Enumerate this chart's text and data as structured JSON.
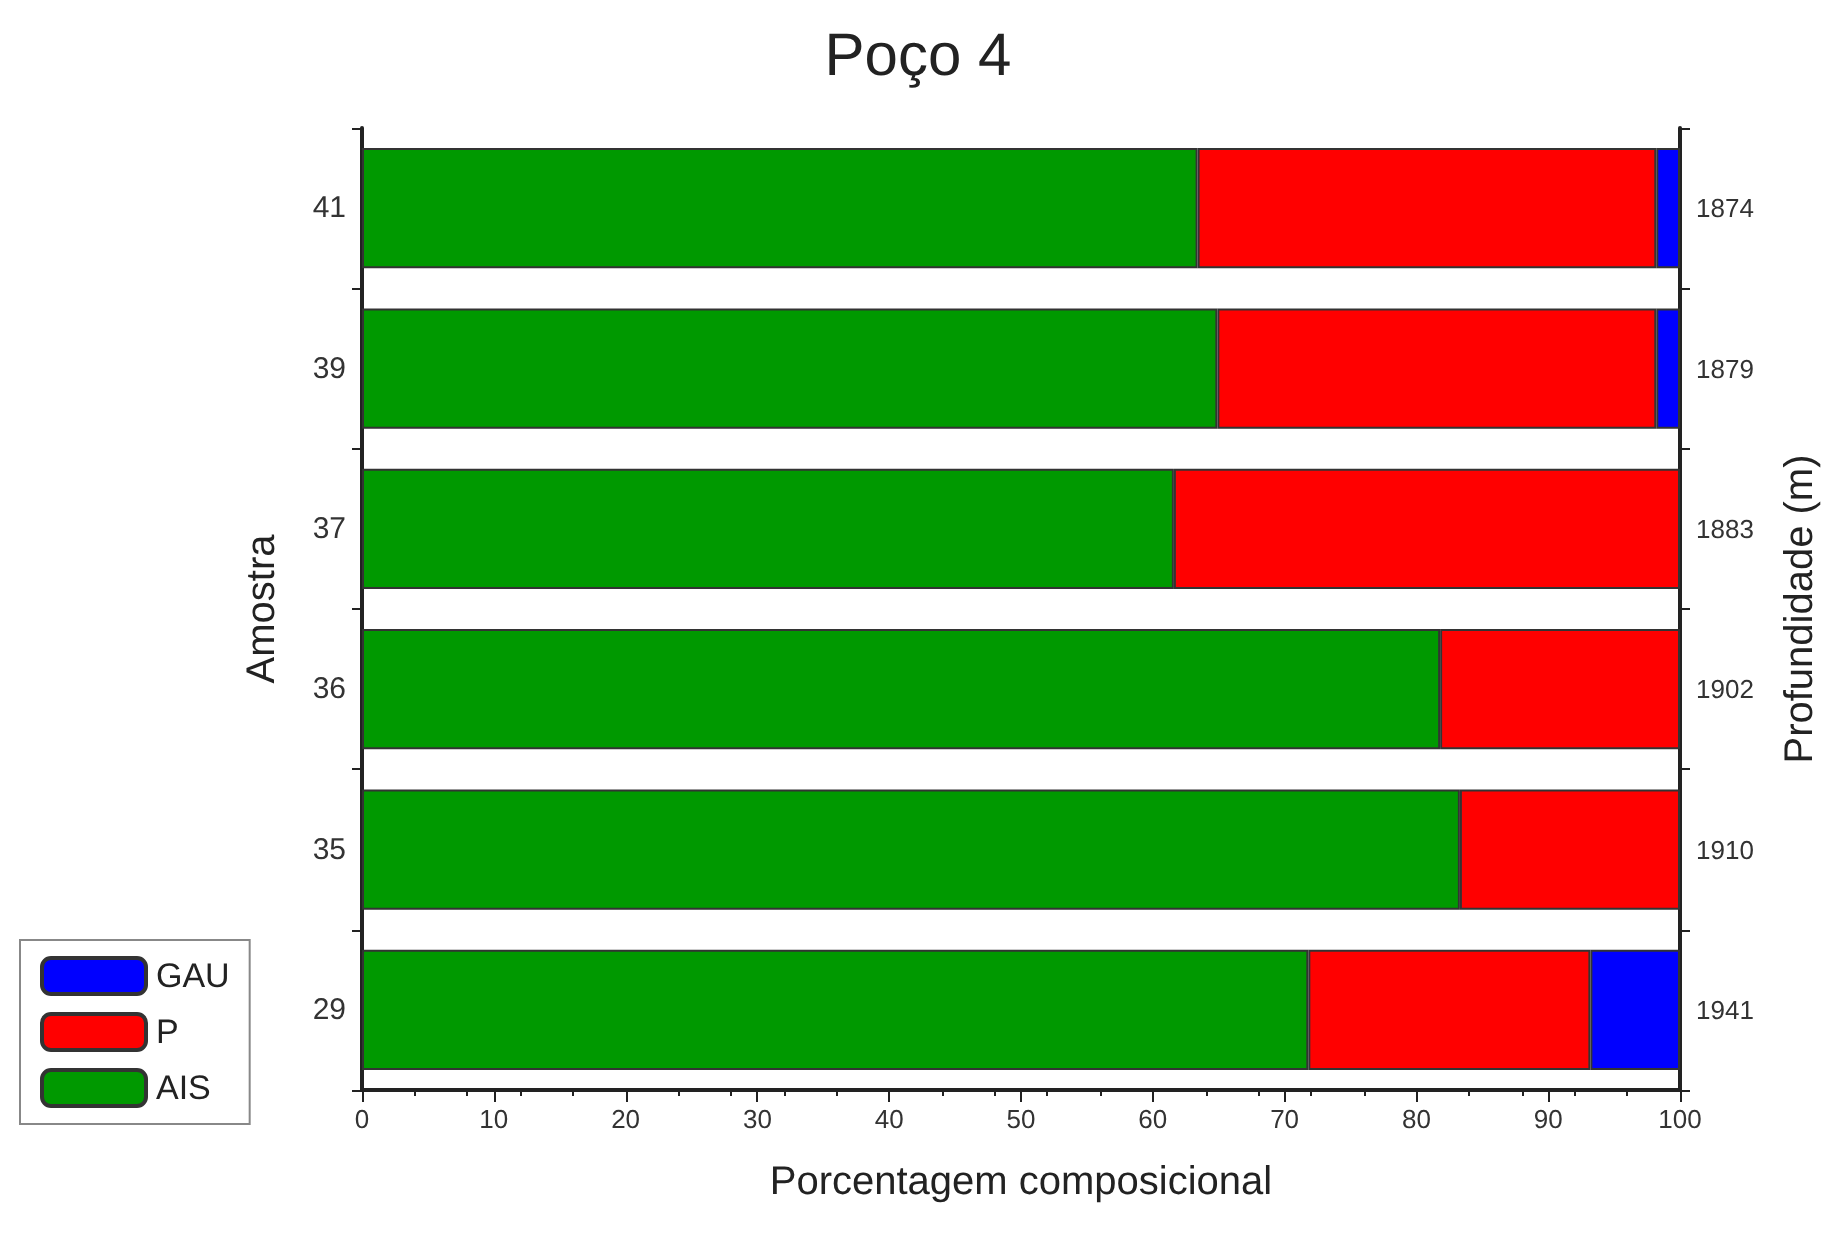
{
  "chart_data": {
    "type": "bar",
    "orientation": "horizontal",
    "stacked": true,
    "title": "Poço 4",
    "xlabel": "Porcentagem composicional",
    "ylabel": "Amostra",
    "y2label": "Profundidade (m)",
    "categories": [
      "41",
      "39",
      "37",
      "36",
      "35",
      "29"
    ],
    "y2_categories": [
      "1874",
      "1879",
      "1883",
      "1902",
      "1910",
      "1941"
    ],
    "series": [
      {
        "name": "AIS",
        "color": "#009900",
        "values": [
          63.4,
          64.9,
          61.6,
          81.8,
          83.3,
          71.8
        ]
      },
      {
        "name": "P",
        "color": "#ff0000",
        "values": [
          34.8,
          33.3,
          38.4,
          18.2,
          16.7,
          21.4
        ]
      },
      {
        "name": "GAU",
        "color": "#0000ff",
        "values": [
          1.8,
          1.8,
          0,
          0,
          0,
          6.8
        ]
      }
    ],
    "xlim": [
      0,
      100
    ],
    "xticks": [
      0,
      10,
      20,
      30,
      40,
      50,
      60,
      70,
      80,
      90,
      100
    ],
    "grid": false,
    "legend": "bottom left"
  }
}
